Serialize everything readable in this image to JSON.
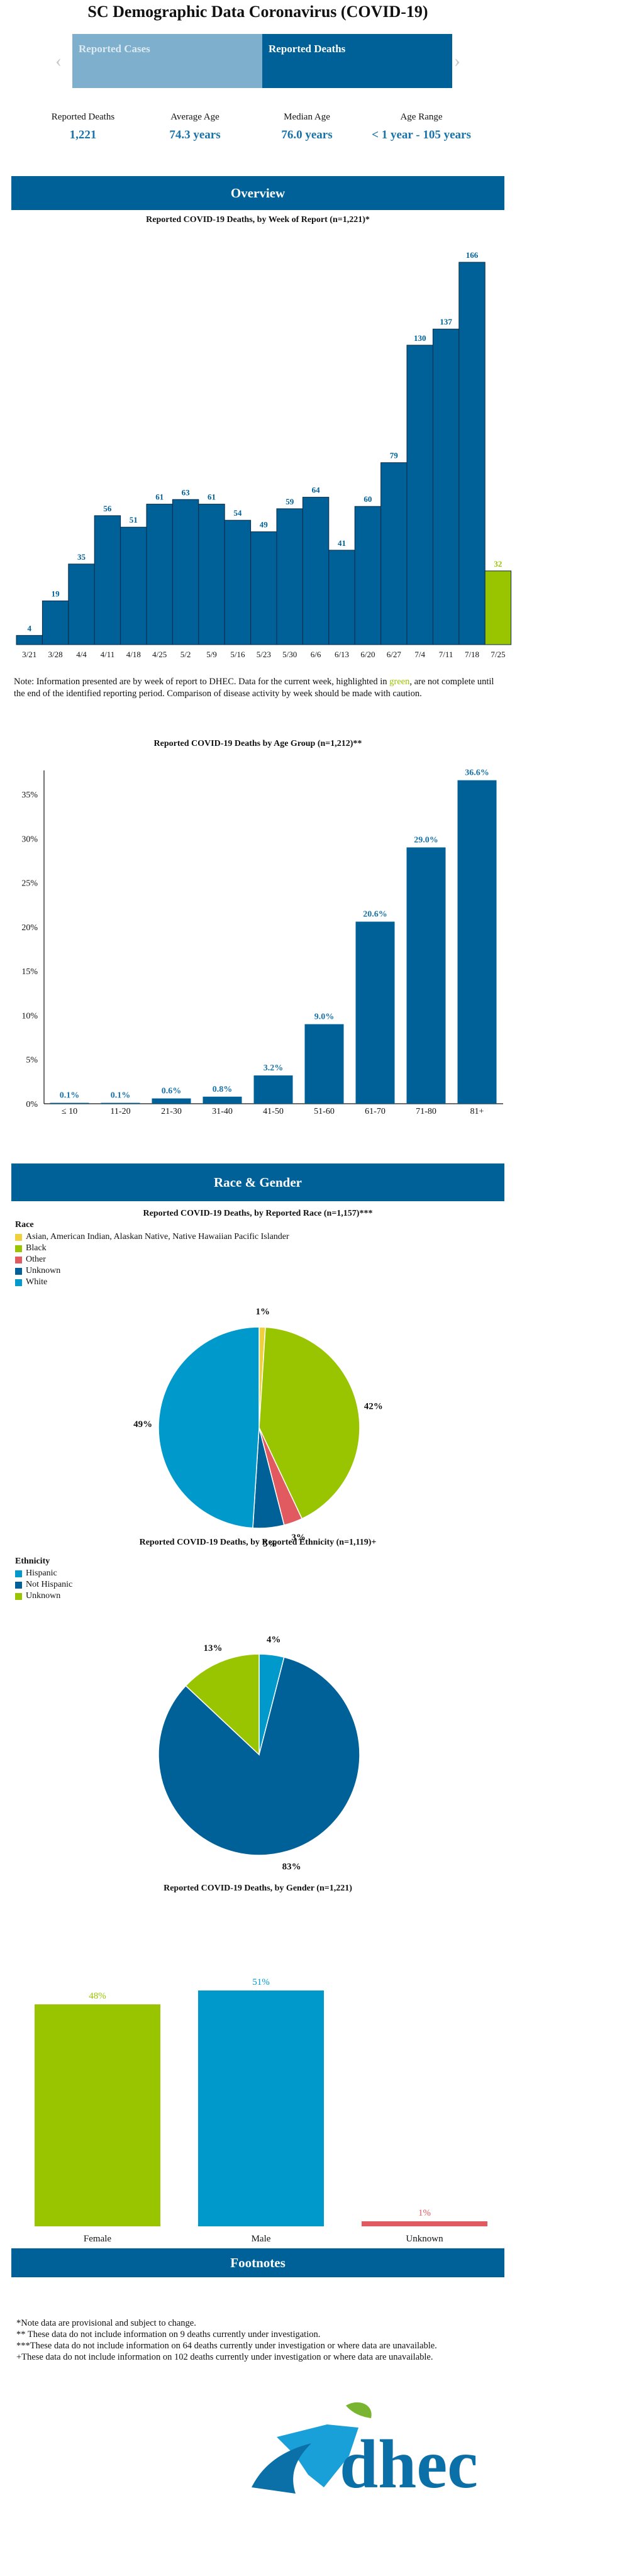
{
  "page": {
    "title": "SC Demographic Data Coronavirus (COVID-19)",
    "tabs": [
      {
        "label": "Reported Cases",
        "active": false
      },
      {
        "label": "Reported Deaths",
        "active": true
      }
    ],
    "nav": {
      "prev_icon": "chevron-left-icon",
      "next_icon": "chevron-right-icon"
    },
    "stats": [
      {
        "label": "Reported Deaths",
        "value": "1,221"
      },
      {
        "label": "Average Age",
        "value": "74.3 years"
      },
      {
        "label": "Median Age",
        "value": "76.0 years"
      },
      {
        "label": "Age Range",
        "value": "< 1 year - 105 years"
      }
    ],
    "banners": {
      "overview": "Overview",
      "race_gender": "Race & Gender",
      "footnotes": "Footnotes"
    },
    "note_parts": {
      "before": "Note: Information presented are by week of report to DHEC. Data for the current week, highlighted in ",
      "highlight": "green",
      "after": ", are not complete until the end of the identified reporting period. Comparison of disease activity by week should be made with caution."
    },
    "footnotes": [
      "*Note data are provisional and subject to change.",
      "** These data do not include information on 9 deaths currently under investigation.",
      "***These data do not include information on 64 deaths currently under investigation or where data are unavailable.",
      "+These data do not include information on 102 deaths currently under investigation or where data are unavailable."
    ],
    "logo_text": "dhec",
    "colors": {
      "primary": "#006199",
      "green": "#99c400",
      "light_blue": "#0099cc",
      "red": "#e05a5f",
      "yellow": "#f0d03c",
      "tab_inactive": "#7eb0cd"
    }
  },
  "chart_data": [
    {
      "type": "bar",
      "title": "Reported COVID-19 Deaths, by Week of Report (n=1,221)*",
      "categories": [
        "3/21",
        "3/28",
        "4/4",
        "4/11",
        "4/18",
        "4/25",
        "5/2",
        "5/9",
        "5/16",
        "5/23",
        "5/30",
        "6/6",
        "6/13",
        "6/20",
        "6/27",
        "7/4",
        "7/11",
        "7/18",
        "7/25"
      ],
      "values": [
        4,
        19,
        35,
        56,
        51,
        61,
        63,
        61,
        54,
        49,
        59,
        64,
        41,
        60,
        79,
        130,
        137,
        166,
        32
      ],
      "highlight_last": true,
      "colors": {
        "default": "#006199",
        "current_week": "#99c400"
      }
    },
    {
      "type": "bar",
      "title": "Reported COVID-19 Deaths by Age Group (n=1,212)**",
      "categories": [
        "≤ 10",
        "11-20",
        "21-30",
        "31-40",
        "41-50",
        "51-60",
        "61-70",
        "71-80",
        "81+"
      ],
      "values": [
        0.1,
        0.1,
        0.6,
        0.8,
        3.2,
        9.0,
        20.6,
        29.0,
        36.6
      ],
      "value_labels": [
        "0.1%",
        "0.1%",
        "0.6%",
        "0.8%",
        "3.2%",
        "9.0%",
        "20.6%",
        "29.0%",
        "36.6%"
      ],
      "yticks": [
        "0%",
        "5%",
        "10%",
        "15%",
        "20%",
        "25%",
        "30%",
        "35%"
      ],
      "ylim": [
        0,
        37
      ],
      "grid": false
    },
    {
      "type": "pie",
      "title": "Reported COVID-19 Deaths, by Reported Race (n=1,157)***",
      "legend_title": "Race",
      "labels": [
        "Asian, American Indian, Alaskan Native, Native Hawaiian Pacific Islander",
        "Black",
        "Other",
        "Unknown",
        "White"
      ],
      "values": [
        1,
        42,
        3,
        5,
        49
      ],
      "slice_labels": [
        "1%",
        "42%",
        "3%",
        "5%",
        "49%"
      ],
      "colors": [
        "#f0d03c",
        "#99c400",
        "#e05a5f",
        "#006199",
        "#0099cc"
      ],
      "legend_position": "top-left"
    },
    {
      "type": "pie",
      "title": "Reported COVID-19 Deaths, by Reported Ethnicity (n=1,119)+",
      "legend_title": "Ethnicity",
      "labels": [
        "Hispanic",
        "Not Hispanic",
        "Unknown"
      ],
      "values": [
        4,
        83,
        13
      ],
      "slice_labels": [
        "4%",
        "83%",
        "13%"
      ],
      "colors": [
        "#0099cc",
        "#006199",
        "#99c400"
      ],
      "legend_position": "top-left"
    },
    {
      "type": "bar",
      "title": "Reported COVID-19 Deaths, by Gender (n=1,221)",
      "categories": [
        "Female",
        "Male",
        "Unknown"
      ],
      "values": [
        48,
        51,
        1
      ],
      "value_labels": [
        "48%",
        "51%",
        "1%"
      ],
      "colors": [
        "#99c400",
        "#0099cc",
        "#e05a5f"
      ]
    }
  ]
}
